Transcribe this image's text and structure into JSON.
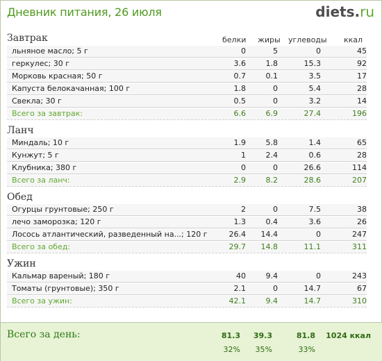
{
  "header": {
    "title": "Дневник питания, 26 июля",
    "logo_name": "diets",
    "logo_dot": ".",
    "logo_tld": "ru"
  },
  "columns": {
    "protein": "белки",
    "fat": "жиры",
    "carbs": "углеводы",
    "kcal": "ккал"
  },
  "meals": [
    {
      "title": "Завтрак",
      "items": [
        {
          "name": "льняное масло; 5 г",
          "protein": "0",
          "fat": "5",
          "carbs": "0",
          "kcal": "45"
        },
        {
          "name": "геркулес; 30 г",
          "protein": "3.6",
          "fat": "1.8",
          "carbs": "15.3",
          "kcal": "92"
        },
        {
          "name": "Морковь красная; 50 г",
          "protein": "0.7",
          "fat": "0.1",
          "carbs": "3.5",
          "kcal": "17"
        },
        {
          "name": "Капуста белокачанная; 100 г",
          "protein": "1.8",
          "fat": "0",
          "carbs": "5.4",
          "kcal": "28"
        },
        {
          "name": "Свекла; 30 г",
          "protein": "0.5",
          "fat": "0",
          "carbs": "3.2",
          "kcal": "14"
        }
      ],
      "total": {
        "name": "Всего за завтрак:",
        "protein": "6.6",
        "fat": "6.9",
        "carbs": "27.4",
        "kcal": "196"
      }
    },
    {
      "title": "Ланч",
      "items": [
        {
          "name": "Миндаль; 10 г",
          "protein": "1.9",
          "fat": "5.8",
          "carbs": "1.4",
          "kcal": "65"
        },
        {
          "name": "Кунжут; 5 г",
          "protein": "1",
          "fat": "2.4",
          "carbs": "0.6",
          "kcal": "28"
        },
        {
          "name": "Клубника; 380 г",
          "protein": "0",
          "fat": "0",
          "carbs": "26.6",
          "kcal": "114"
        }
      ],
      "total": {
        "name": "Всего за ланч:",
        "protein": "2.9",
        "fat": "8.2",
        "carbs": "28.6",
        "kcal": "207"
      }
    },
    {
      "title": "Обед",
      "items": [
        {
          "name": "Огурцы грунтовые; 250 г",
          "protein": "2",
          "fat": "0",
          "carbs": "7.5",
          "kcal": "38"
        },
        {
          "name": "лечо заморозка; 120 г",
          "protein": "1.3",
          "fat": "0.4",
          "carbs": "3.6",
          "kcal": "26"
        },
        {
          "name": "Лосось атлантический, разведенный на...; 120 г",
          "protein": "26.4",
          "fat": "14.4",
          "carbs": "0",
          "kcal": "247"
        }
      ],
      "total": {
        "name": "Всего за обед:",
        "protein": "29.7",
        "fat": "14.8",
        "carbs": "11.1",
        "kcal": "311"
      }
    },
    {
      "title": "Ужин",
      "items": [
        {
          "name": "Кальмар вареный; 180 г",
          "protein": "40",
          "fat": "9.4",
          "carbs": "0",
          "kcal": "243"
        },
        {
          "name": "Томаты (грунтовые); 350 г",
          "protein": "2.1",
          "fat": "0",
          "carbs": "14.7",
          "kcal": "67"
        }
      ],
      "total": {
        "name": "Всего за ужин:",
        "protein": "42.1",
        "fat": "9.4",
        "carbs": "14.7",
        "kcal": "310"
      }
    }
  ],
  "day_total": {
    "label": "Всего за день:",
    "protein": "81.3",
    "fat": "39.3",
    "carbs": "81.8",
    "kcal": "1024 ккал",
    "protein_pct": "32%",
    "fat_pct": "35%",
    "carbs_pct": "33%"
  }
}
